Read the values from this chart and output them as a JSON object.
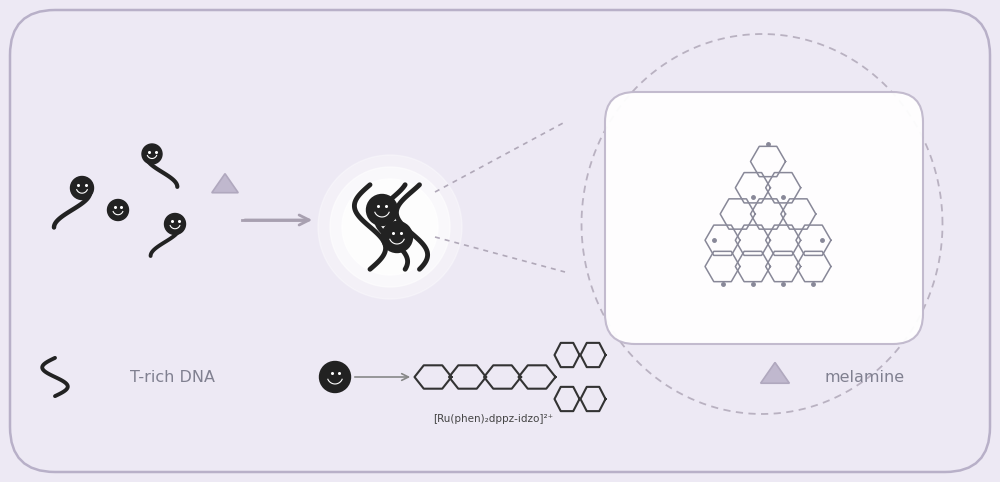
{
  "bg_color": "#ede9f4",
  "border_color": "#b8b0c8",
  "label_trich_dna": "T-rich DNA",
  "label_melamine": "melamine",
  "label_complex": "[Ru(phen)₂dppz-idzo]²⁺",
  "triangle_color": "#c0b8ce",
  "triangle_edge": "#b0a8be",
  "arrow_color": "#a8a0b0",
  "dna_color": "#222222",
  "text_color": "#808090",
  "dashed_color": "#b0a8b8",
  "mol_color": "#888898",
  "mol_lw": 1.1,
  "box_color": "white",
  "box_edge": "#c0b8cc"
}
